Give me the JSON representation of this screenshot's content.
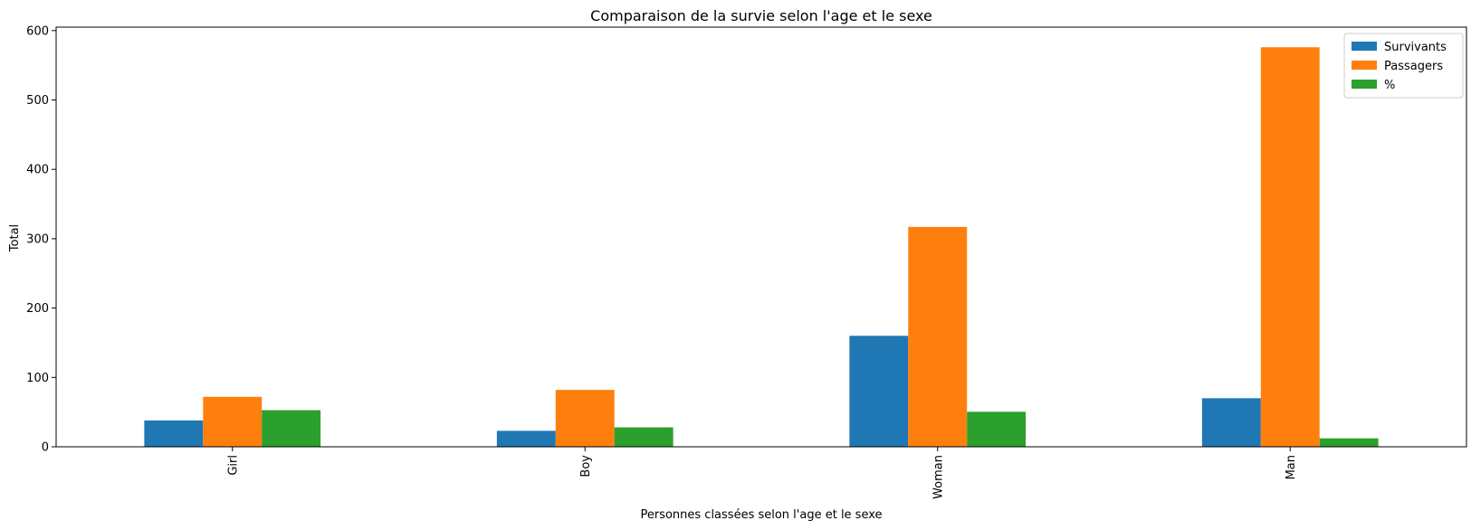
{
  "chart_data": {
    "type": "bar",
    "title": "Comparaison de la survie selon l'age et le sexe",
    "xlabel": "Personnes classées selon l'age et le sexe",
    "ylabel": "Total",
    "categories": [
      "Girl",
      "Boy",
      "Woman",
      "Man"
    ],
    "series": [
      {
        "name": "Survivants",
        "color": "#1f77b4",
        "values": [
          38,
          23,
          160,
          70
        ]
      },
      {
        "name": "Passagers",
        "color": "#ff7f0e",
        "values": [
          72,
          82,
          317,
          576
        ]
      },
      {
        "name": "%",
        "color": "#2ca02c",
        "values": [
          52.8,
          28.0,
          50.5,
          12.2
        ]
      }
    ],
    "ylim": [
      0,
      605
    ],
    "yticks": [
      0,
      100,
      200,
      300,
      400,
      500,
      600
    ],
    "grid": false,
    "legend_position": "top-right"
  }
}
